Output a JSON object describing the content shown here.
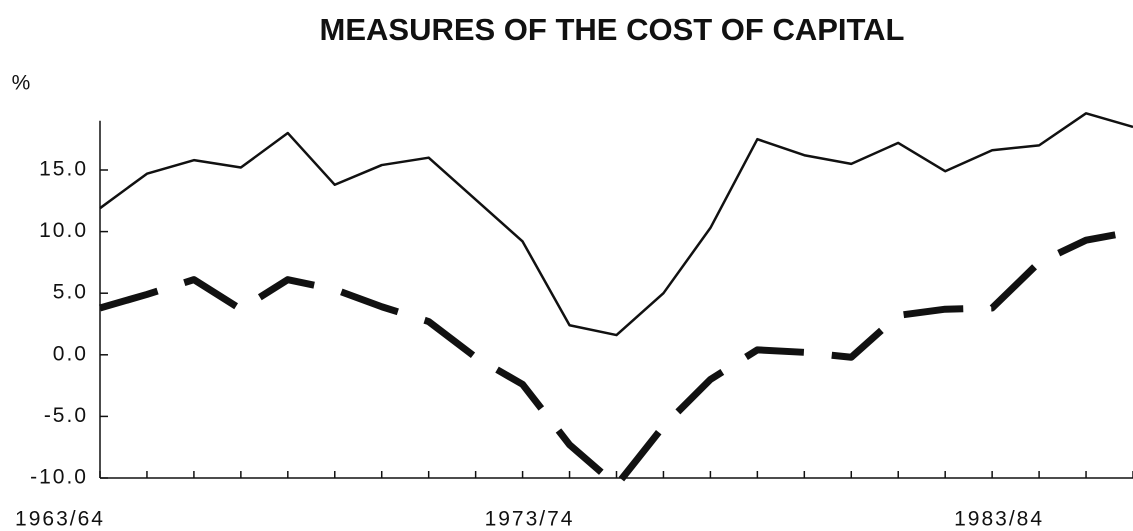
{
  "chart_data": {
    "type": "line",
    "title": "MEASURES OF THE COST OF CAPITAL",
    "y_label": "%",
    "categories": [
      "1963/64",
      null,
      null,
      null,
      null,
      null,
      null,
      null,
      null,
      null,
      "1973/74",
      null,
      null,
      null,
      null,
      null,
      null,
      null,
      null,
      null,
      "1983/84",
      null,
      null
    ],
    "series": [
      {
        "color": "#111111",
        "style": "solid",
        "values": [
          11.9,
          14.7,
          15.8,
          15.2,
          18.0,
          13.8,
          15.4,
          16.0,
          12.6,
          9.2,
          2.4,
          1.6,
          5.0,
          10.3,
          17.5,
          16.2,
          15.5,
          17.2,
          14.9,
          16.6,
          17.0,
          19.6,
          18.5
        ]
      },
      {
        "color": "#111111",
        "style": "dashed",
        "values": [
          3.8,
          4.9,
          6.1,
          3.7,
          6.1,
          5.3,
          3.9,
          2.7,
          -0.2,
          -2.4,
          -7.3,
          -10.6,
          -5.8,
          -2.0,
          0.4,
          0.2,
          -0.2,
          3.2,
          3.7,
          3.8,
          7.5,
          9.3,
          10.0
        ]
      }
    ],
    "ylim": [
      -10,
      19
    ],
    "yticks": [
      {
        "value": -10,
        "label": "-10.0"
      },
      {
        "value": -5,
        "label": "-5.0"
      },
      {
        "value": 0,
        "label": "0.0"
      },
      {
        "value": 5,
        "label": "5.0"
      },
      {
        "value": 10,
        "label": "10.0"
      },
      {
        "value": 15,
        "label": "15.0"
      }
    ],
    "grid": false
  }
}
